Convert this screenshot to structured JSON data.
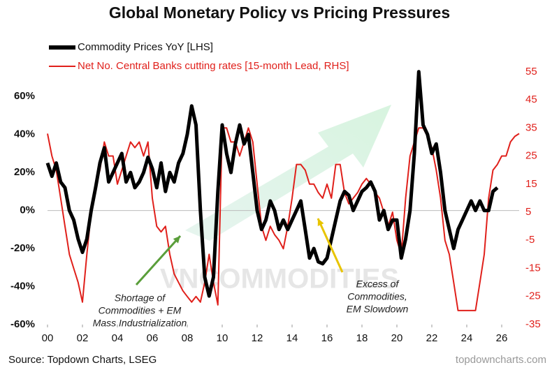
{
  "chart_data": {
    "type": "line",
    "title": "Global Monetary Policy vs Pricing Pressures",
    "x": [
      2000,
      2000.25,
      2000.5,
      2000.75,
      2001,
      2001.25,
      2001.5,
      2001.75,
      2002,
      2002.25,
      2002.5,
      2002.75,
      2003,
      2003.25,
      2003.5,
      2003.75,
      2004,
      2004.25,
      2004.5,
      2004.75,
      2005,
      2005.25,
      2005.5,
      2005.75,
      2006,
      2006.25,
      2006.5,
      2006.75,
      2007,
      2007.25,
      2007.5,
      2007.75,
      2008,
      2008.25,
      2008.5,
      2008.75,
      2009,
      2009.25,
      2009.5,
      2009.75,
      2010,
      2010.25,
      2010.5,
      2010.75,
      2011,
      2011.25,
      2011.5,
      2011.75,
      2012,
      2012.25,
      2012.5,
      2012.75,
      2013,
      2013.25,
      2013.5,
      2013.75,
      2014,
      2014.25,
      2014.5,
      2014.75,
      2015,
      2015.25,
      2015.5,
      2015.75,
      2016,
      2016.25,
      2016.5,
      2016.75,
      2017,
      2017.25,
      2017.5,
      2017.75,
      2018,
      2018.25,
      2018.5,
      2018.75,
      2019,
      2019.25,
      2019.5,
      2019.75,
      2020,
      2020.25,
      2020.5,
      2020.75,
      2021,
      2021.25,
      2021.5,
      2021.75,
      2022,
      2022.25,
      2022.5,
      2022.75,
      2023,
      2023.25,
      2023.5,
      2023.75,
      2024,
      2024.25,
      2024.5,
      2024.75,
      2025,
      2025.25,
      2025.5,
      2025.75,
      2026,
      2026.25,
      2026.5,
      2026.75,
      2027
    ],
    "series": [
      {
        "name": "Commodity Prices YoY [LHS]",
        "color": "#000000",
        "axis": "y",
        "values": [
          25,
          18,
          25,
          15,
          12,
          0,
          -5,
          -15,
          -22,
          -15,
          0,
          12,
          25,
          33,
          15,
          20,
          25,
          30,
          15,
          20,
          12,
          15,
          20,
          28,
          22,
          12,
          25,
          10,
          20,
          15,
          25,
          30,
          40,
          55,
          45,
          0,
          -35,
          -45,
          -35,
          10,
          45,
          30,
          20,
          35,
          45,
          35,
          40,
          20,
          0,
          -10,
          -5,
          5,
          0,
          -10,
          -5,
          -10,
          -5,
          0,
          5,
          -10,
          -25,
          -20,
          -27,
          -28,
          -25,
          -15,
          -5,
          5,
          10,
          8,
          0,
          5,
          10,
          12,
          15,
          10,
          -5,
          0,
          -10,
          -5,
          -5,
          -25,
          -15,
          0,
          30,
          73,
          45,
          40,
          30,
          35,
          20,
          0,
          -10,
          -20,
          -10,
          -5,
          0,
          5,
          0,
          5,
          0,
          0,
          10,
          12,
          null,
          null,
          null,
          null,
          null
        ]
      },
      {
        "name": "Net No. Central Banks cutting rates [15-month Lead, RHS]",
        "color": "#e0201b",
        "axis": "y2",
        "values": [
          33,
          25,
          20,
          10,
          0,
          -10,
          -15,
          -20,
          -27,
          -10,
          5,
          15,
          20,
          30,
          25,
          25,
          15,
          20,
          25,
          30,
          28,
          30,
          25,
          30,
          10,
          0,
          -2,
          0,
          -10,
          -17,
          -20,
          -23,
          -25,
          -27,
          -25,
          -27,
          -20,
          -10,
          -20,
          -28,
          35,
          35,
          30,
          30,
          25,
          30,
          35,
          30,
          15,
          0,
          -5,
          0,
          -3,
          -5,
          -8,
          0,
          10,
          22,
          22,
          20,
          15,
          15,
          12,
          10,
          15,
          10,
          22,
          22,
          12,
          8,
          10,
          12,
          15,
          17,
          15,
          12,
          10,
          5,
          0,
          5,
          -5,
          -10,
          10,
          25,
          30,
          35,
          35,
          32,
          28,
          20,
          10,
          -5,
          -10,
          -20,
          -30,
          -30,
          -30,
          -30,
          -30,
          -20,
          -10,
          10,
          20,
          22,
          25,
          25,
          30,
          32,
          33
        ]
      }
    ],
    "xlim": [
      2000,
      2027
    ],
    "xticks": [
      {
        "value": 2000,
        "label": "00"
      },
      {
        "value": 2002,
        "label": "02"
      },
      {
        "value": 2004,
        "label": "04"
      },
      {
        "value": 2006,
        "label": "06"
      },
      {
        "value": 2008,
        "label": "08"
      },
      {
        "value": 2010,
        "label": "10"
      },
      {
        "value": 2012,
        "label": "12"
      },
      {
        "value": 2014,
        "label": "14"
      },
      {
        "value": 2016,
        "label": "16"
      },
      {
        "value": 2018,
        "label": "18"
      },
      {
        "value": 2020,
        "label": "20"
      },
      {
        "value": 2022,
        "label": "22"
      },
      {
        "value": 2024,
        "label": "24"
      },
      {
        "value": 2026,
        "label": "26"
      }
    ],
    "ylim": [
      -60,
      74
    ],
    "yticks": [
      {
        "value": -60,
        "label": "-60%"
      },
      {
        "value": -40,
        "label": "-40%"
      },
      {
        "value": -20,
        "label": "-20%"
      },
      {
        "value": 0,
        "label": "0%"
      },
      {
        "value": 20,
        "label": "20%"
      },
      {
        "value": 40,
        "label": "40%"
      },
      {
        "value": 60,
        "label": "60%"
      }
    ],
    "y2lim": [
      -35,
      55.7
    ],
    "y2ticks": [
      -35,
      -25,
      -15,
      -5,
      5,
      15,
      25,
      35,
      45,
      55
    ],
    "y2color": "#e0201b",
    "legend": "top-left",
    "annotations": [
      {
        "lines": [
          "Shortage of",
          "Commodities + EM",
          "Mass Industrialization"
        ],
        "color": "#5a9e3a"
      },
      {
        "lines": [
          "Excess of",
          "Commodities,",
          "EM Slowdown"
        ],
        "color": "#e8c400"
      }
    ],
    "watermark": "VNCOMMODITIES",
    "source": "Source: Topdown Charts, LSEG",
    "credit": "topdowncharts.com"
  }
}
